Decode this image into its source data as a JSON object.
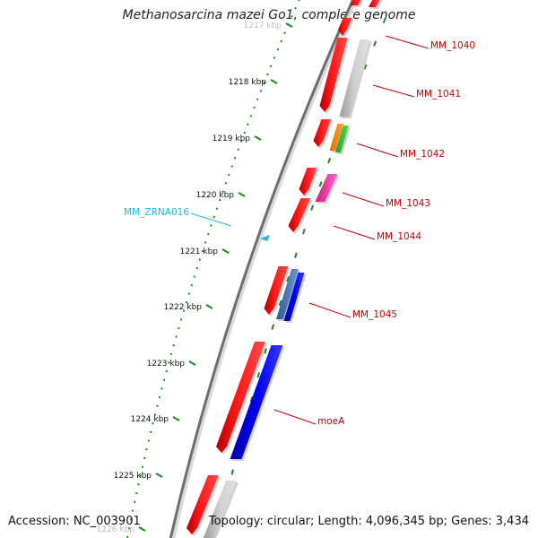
{
  "title": "Methanosarcina mazei Go1, complete genome",
  "footer": {
    "accession": "Accession: NC_003901",
    "summary": "Topology: circular; Length: 4,096,345 bp; Genes: 3,434"
  },
  "colors": {
    "backbone": "#6e6e6e",
    "tick": "#1a8a1a",
    "gene_label": "#cc0000",
    "rna_label": "#22b6ee",
    "rna_feature": "#22b6ee"
  },
  "ruler": {
    "ticks": [
      {
        "label": "1217 kbp",
        "faded": true
      },
      {
        "label": "1218 kbp"
      },
      {
        "label": "1219 kbp"
      },
      {
        "label": "1220 kbp"
      },
      {
        "label": "1221 kbp"
      },
      {
        "label": "1222 kbp"
      },
      {
        "label": "1223 kbp"
      },
      {
        "label": "1224 kbp"
      },
      {
        "label": "1225 kbp"
      },
      {
        "label": "1226 kbp",
        "faded": true
      }
    ]
  },
  "gene_labels": [
    {
      "text": "MM_1040",
      "kind": "gene"
    },
    {
      "text": "MM_1041",
      "kind": "gene"
    },
    {
      "text": "MM_1042",
      "kind": "gene"
    },
    {
      "text": "MM_1043",
      "kind": "gene"
    },
    {
      "text": "MM_1044",
      "kind": "gene"
    },
    {
      "text": "MM_1045",
      "kind": "gene"
    },
    {
      "text": "moeA",
      "kind": "gene"
    },
    {
      "text": "MM_ZRNA016",
      "kind": "rna"
    }
  ],
  "feature_colors": {
    "cds_strand": "#ff0000",
    "gray": "#bdbdbd",
    "orange": "#ff8c00",
    "green": "#33cc33",
    "magenta": "#ee3aa6",
    "steel": "#4a78b8",
    "blue": "#0000ee"
  }
}
